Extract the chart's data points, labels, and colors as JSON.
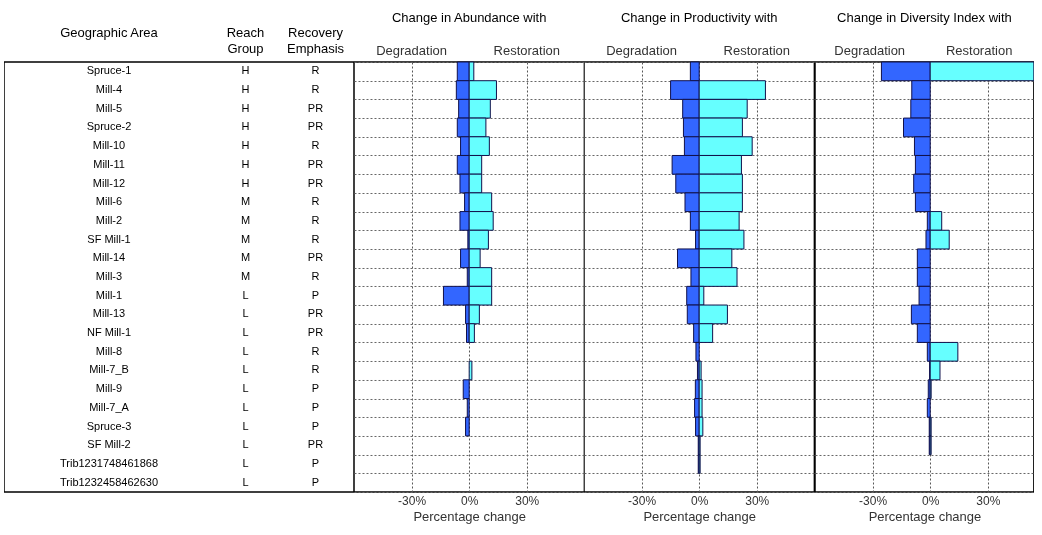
{
  "chart_data": [
    {
      "type": "other",
      "categories": [
        "Geographic Area",
        "Reach Group",
        "Recovery Emphasis"
      ],
      "cell_labels": [
        [
          "Spruce-1",
          "H",
          "R"
        ],
        [
          "Mill-4",
          "H",
          "R"
        ],
        [
          "Mill-5",
          "H",
          "PR"
        ],
        [
          "Spruce-2",
          "H",
          "PR"
        ],
        [
          "Mill-10",
          "H",
          "R"
        ],
        [
          "Mill-11",
          "H",
          "PR"
        ],
        [
          "Mill-12",
          "H",
          "PR"
        ],
        [
          "Mill-6",
          "M",
          "R"
        ],
        [
          "Mill-2",
          "M",
          "R"
        ],
        [
          "SF Mill-1",
          "M",
          "R"
        ],
        [
          "Mill-14",
          "M",
          "PR"
        ],
        [
          "Mill-3",
          "M",
          "R"
        ],
        [
          "Mill-1",
          "L",
          "P"
        ],
        [
          "Mill-13",
          "L",
          "PR"
        ],
        [
          "NF Mill-1",
          "L",
          "PR"
        ],
        [
          "Mill-8",
          "L",
          "R"
        ],
        [
          "Mill-7_B",
          "L",
          "R"
        ],
        [
          "Mill-9",
          "L",
          "P"
        ],
        [
          "Mill-7_A",
          "L",
          "P"
        ],
        [
          "Spruce-3",
          "L",
          "P"
        ],
        [
          "SF Mill-2",
          "L",
          "PR"
        ],
        [
          "Trib1231748461868",
          "L",
          "P"
        ],
        [
          "Trib1232458462630",
          "L",
          "P"
        ]
      ]
    },
    {
      "type": "bar",
      "orientation": "horizontal",
      "stacked": true,
      "title": "Change in Abundance with",
      "xlabel": "Percentage change",
      "tick_labels": "x",
      "grid": true,
      "xlim": [
        -60,
        60
      ],
      "xticks": [
        {
          "value": -30,
          "label": "-30%"
        },
        {
          "value": 0,
          "label": "0%"
        },
        {
          "value": 30,
          "label": "30%"
        }
      ],
      "series": [
        {
          "name": "Degradation",
          "color": "#3366ff",
          "values": [
            -6.2,
            -6.7,
            -5.5,
            -6.2,
            -4.5,
            -6.2,
            -4.8,
            -2.4,
            -4.8,
            -0.7,
            -4.5,
            -1,
            -13.4,
            -1.9,
            -1.4,
            null,
            null,
            -3.1,
            -1,
            -1.9,
            null,
            null,
            null
          ]
        },
        {
          "name": "Restoration",
          "color": "#66ffff",
          "values": [
            2.4,
            14.2,
            11,
            8.7,
            10.5,
            6.5,
            6.5,
            11.7,
            12.5,
            10,
            5.7,
            11.7,
            11.7,
            5.3,
            2.7,
            null,
            1.4,
            null,
            null,
            null,
            null,
            null,
            null
          ]
        }
      ]
    },
    {
      "type": "bar",
      "orientation": "horizontal",
      "stacked": true,
      "title": "Change in Productivity with",
      "xlabel": "Percentage change",
      "tick_labels": "x",
      "grid": true,
      "xlim": [
        -60,
        60
      ],
      "xticks": [
        {
          "value": -30,
          "label": "-30%"
        },
        {
          "value": 0,
          "label": "0%"
        },
        {
          "value": 30,
          "label": "30%"
        }
      ],
      "series": [
        {
          "name": "Degradation",
          "color": "#3366ff",
          "values": [
            -4.6,
            -14.9,
            -8.6,
            -8.2,
            -7.7,
            -14.1,
            -12.2,
            -7.4,
            -4.6,
            -1.9,
            -11.3,
            -4.3,
            -6.5,
            -6.2,
            -2.9,
            -1.7,
            -0.9,
            -2,
            -2.4,
            -1.9,
            -0.5,
            -0.5,
            null
          ]
        },
        {
          "name": "Restoration",
          "color": "#66ffff",
          "values": [
            null,
            34.5,
            25,
            22.5,
            27.6,
            22,
            22.5,
            22.5,
            20.8,
            23.3,
            17,
            19.7,
            2.4,
            14.7,
            7,
            null,
            1,
            1.5,
            1.5,
            1.9,
            0.5,
            0.5,
            null
          ]
        }
      ]
    },
    {
      "type": "bar",
      "orientation": "horizontal",
      "stacked": true,
      "title": "Change in Diversity Index with",
      "xlabel": "Percentage change",
      "tick_labels": "x",
      "grid": true,
      "xlim": [
        -60,
        54
      ],
      "xticks": [
        {
          "value": -30,
          "label": "-30%"
        },
        {
          "value": 0,
          "label": "0%"
        },
        {
          "value": 30,
          "label": "30%"
        }
      ],
      "series": [
        {
          "name": "Degradation",
          "color": "#3366ff",
          "values": [
            -25.4,
            -9.6,
            -10.1,
            -13.9,
            -8.2,
            -7.7,
            -8.6,
            -7.7,
            -1.5,
            -2.2,
            -6.7,
            -6.7,
            -5.8,
            -9.8,
            -6.7,
            -1.5,
            -0.3,
            -1,
            -1.5,
            -0.5,
            -0.5,
            null,
            null
          ]
        },
        {
          "name": "Restoration",
          "color": "#66ffff",
          "values": [
            54,
            null,
            null,
            null,
            null,
            null,
            null,
            null,
            6,
            9.9,
            null,
            null,
            null,
            null,
            null,
            14.4,
            5.1,
            0.5,
            null,
            0.5,
            0.5,
            null,
            null
          ]
        }
      ]
    }
  ]
}
